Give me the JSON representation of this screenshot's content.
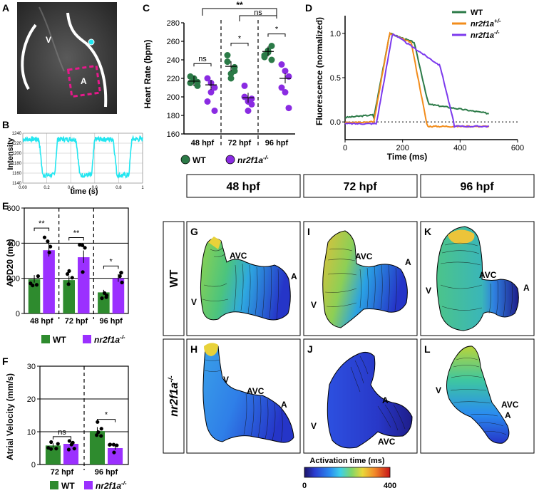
{
  "colors": {
    "wt": "#2b7a47",
    "mut": "#8a2be2",
    "mut_d": "#7c3aed",
    "het": "#f28c1b",
    "cyan": "#22e6f0",
    "magenta": "#e6198b",
    "wt_bar": "#2e8b2e",
    "mut_bar": "#9b30ff"
  },
  "panels": {
    "A": "A",
    "B": "B",
    "C": "C",
    "D": "D",
    "E": "E",
    "F": "F",
    "G": "G",
    "H": "H",
    "I": "I",
    "J": "J",
    "K": "K",
    "L": "L"
  },
  "panel_a": {
    "v_label": "V",
    "a_label": "A"
  },
  "chart_data": [
    {
      "id": "B",
      "type": "line",
      "ylabel": "Intensity",
      "xlabel": "time (s)",
      "xlim": [
        0,
        1
      ],
      "ylim": [
        1140,
        1240
      ],
      "xticks": [
        "0.00",
        "0.2",
        "0.4",
        "0.6",
        "0.8",
        "1"
      ],
      "yticks": [
        "1140",
        "1160",
        "1180",
        "1200",
        "1220",
        "1240"
      ],
      "period": 0.31,
      "high": 1228,
      "low": 1156
    },
    {
      "id": "C",
      "type": "scatter",
      "ylabel": "Heart Rate (bpm)",
      "ylim": [
        160,
        280
      ],
      "yticks": [
        "160",
        "180",
        "200",
        "220",
        "240",
        "260",
        "280"
      ],
      "groups": [
        "48 hpf",
        "72 hpf",
        "96 hpf"
      ],
      "series": [
        {
          "name": "WT",
          "data": [
            [
              215,
              218,
              212,
              222,
              220,
              216
            ],
            [
              238,
              225,
              232,
              245,
              220,
              228
            ],
            [
              245,
              250,
              255,
              243,
              248,
              240
            ]
          ],
          "means": [
            217,
            233,
            249
          ]
        },
        {
          "name": "nr2f1a",
          "data": [
            [
              220,
              215,
              210,
              195,
              205,
              185
            ],
            [
              212,
              195,
              192,
              200,
              185,
              198
            ],
            [
              235,
              228,
              222,
              210,
              205,
              188
            ]
          ],
          "means": [
            213,
            199,
            220
          ]
        }
      ],
      "sig": {
        "48": "ns",
        "72": "*",
        "96": "*",
        "overall": "**",
        "overall2": "ns"
      },
      "legend": {
        "wt": "WT",
        "mut": "nr2f1a",
        "mut_sup": "-/-"
      }
    },
    {
      "id": "D",
      "type": "line",
      "ylabel": "Fluorescence (normalized)",
      "xlabel": "Time (ms)",
      "xlim": [
        0,
        600
      ],
      "ylim": [
        -0.2,
        1.2
      ],
      "xticks": [
        "0",
        "200",
        "400",
        "600"
      ],
      "yticks": [
        "0.0",
        "0.5",
        "1.0"
      ],
      "series": [
        {
          "name": "WT",
          "sup": ""
        },
        {
          "name": "nr2f1a",
          "sup": "+/-"
        },
        {
          "name": "nr2f1a",
          "sup": "-/-"
        }
      ]
    },
    {
      "id": "E",
      "type": "bar",
      "ylabel": "APD20 (ms)",
      "ylim": [
        0,
        600
      ],
      "yticks": [
        "0",
        "200",
        "400",
        "600"
      ],
      "categories": [
        "48 hpf",
        "72 hpf",
        "96 hpf"
      ],
      "series": [
        {
          "name": "WT",
          "values": [
            195,
            190,
            120
          ]
        },
        {
          "name": "nr2f1a",
          "values": [
            360,
            320,
            200
          ]
        }
      ],
      "sig": [
        "**",
        "**",
        "*"
      ],
      "legend": {
        "wt": "WT",
        "mut": "nr2f1a",
        "mut_sup": "-/-"
      }
    },
    {
      "id": "F",
      "type": "bar",
      "ylabel": "Atrial Velocity (mm/s)",
      "ylim": [
        0,
        30
      ],
      "yticks": [
        "0",
        "10",
        "20",
        "30"
      ],
      "categories": [
        "72 hpf",
        "96 hpf"
      ],
      "series": [
        {
          "name": "WT",
          "values": [
            5.8,
            10.2
          ]
        },
        {
          "name": "nr2f1a",
          "values": [
            6.3,
            5.0
          ]
        }
      ],
      "sig": [
        "ns",
        "*"
      ],
      "legend": {
        "wt": "WT",
        "mut": "nr2f1a",
        "mut_sup": "-/-"
      }
    },
    {
      "id": "maps",
      "type": "heatmap",
      "columns": [
        "48 hpf",
        "72 hpf",
        "96 hpf"
      ],
      "rows": [
        "WT",
        "nr2f1a"
      ],
      "row_sup": [
        "",
        "-/-"
      ],
      "colorbar": {
        "label": "Activation time (ms)",
        "min": "0",
        "max": "400"
      },
      "labels": {
        "avc": "AVC",
        "a": "A",
        "v": "V"
      }
    }
  ]
}
